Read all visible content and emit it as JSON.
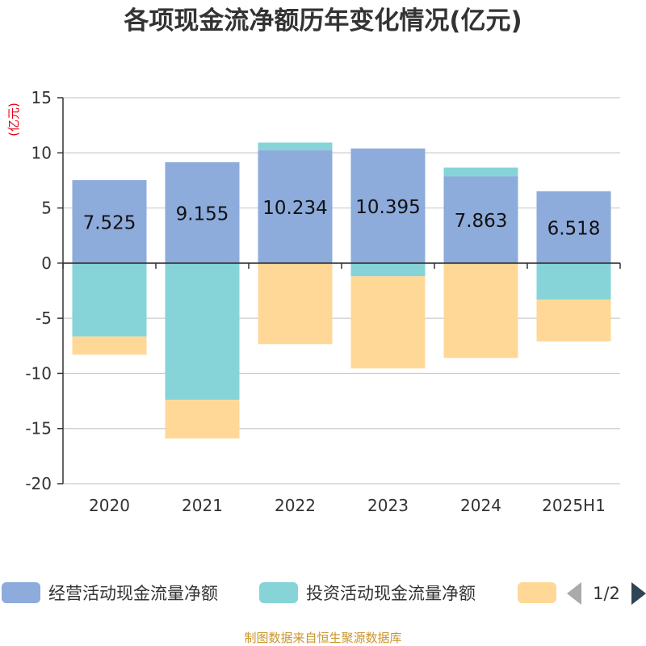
{
  "chart_data": {
    "type": "bar",
    "stacked": true,
    "title": "各项现金流净额历年变化情况(亿元)",
    "unit_label": "(亿元)",
    "categories": [
      "2020",
      "2021",
      "2022",
      "2023",
      "2024",
      "2025H1"
    ],
    "ylim": [
      -20,
      15
    ],
    "yticks": [
      15,
      10,
      5,
      0,
      -5,
      -10,
      -15,
      -20
    ],
    "grid": true,
    "series": [
      {
        "name": "经营活动现金流量净额",
        "color": "#8dabdb",
        "values": [
          7.525,
          9.155,
          10.234,
          10.395,
          7.863,
          6.518
        ],
        "labels": [
          "7.525",
          "9.155",
          "10.234",
          "10.395",
          "7.863",
          "6.518"
        ]
      },
      {
        "name": "投资活动现金流量净额",
        "color": "#86d4d8",
        "values": [
          -6.65,
          -12.4,
          0.7,
          -1.2,
          0.8,
          -3.3
        ]
      },
      {
        "name": "",
        "color": "#ffd898",
        "values": [
          -1.65,
          -3.5,
          -7.35,
          -8.35,
          -8.6,
          -3.8
        ]
      }
    ],
    "legend": {
      "placement": "bottom",
      "page_indicator": "1/2"
    },
    "source": "制图数据来自恒生聚源数据库"
  }
}
